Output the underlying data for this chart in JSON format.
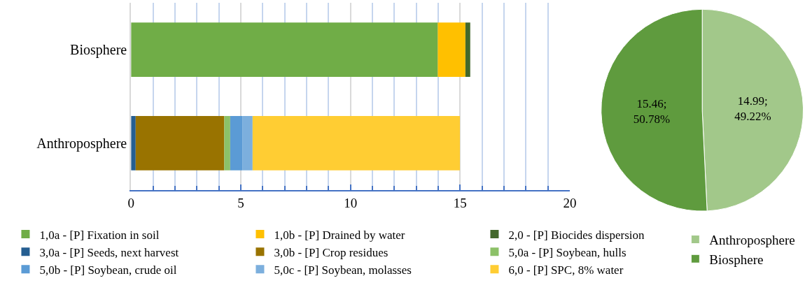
{
  "chart_data": [
    {
      "type": "bar",
      "orientation": "horizontal",
      "stacked": true,
      "categories": [
        "Biosphere",
        "Anthroposphere"
      ],
      "series": [
        {
          "name": "1,0a - [P] Fixation in soil",
          "color": "#70ad47",
          "values": [
            13.98,
            0
          ]
        },
        {
          "name": "1,0b - [P] Drained by water",
          "color": "#ffc000",
          "values": [
            1.26,
            0
          ]
        },
        {
          "name": "2,0 - [P] Biocides dispersion",
          "color": "#43682b",
          "values": [
            0.22,
            0
          ]
        },
        {
          "name": "3,0a - [P] Seeds, next harvest",
          "color": "#255e91",
          "values": [
            0,
            0.21
          ]
        },
        {
          "name": "3,0b - [P] Crop residues",
          "color": "#997300",
          "values": [
            0,
            4.04
          ]
        },
        {
          "name": "5,0a - [P] Soybean, hulls",
          "color": "#8cc168",
          "values": [
            0,
            0.27
          ]
        },
        {
          "name": "5,0b - [P] Soybean, crude oil",
          "color": "#5b9bd5",
          "values": [
            0,
            0.55
          ]
        },
        {
          "name": "5,0c - [P] Soybean, molasses",
          "color": "#7cafdd",
          "values": [
            0,
            0.47
          ]
        },
        {
          "name": "6,0 - [P] SPC, 8% water",
          "color": "#ffcd33",
          "values": [
            0,
            9.45
          ]
        }
      ],
      "xlim": [
        0,
        20
      ],
      "xticks": [
        0,
        {
          "value": 1,
          "label": null
        },
        {
          "value": 2,
          "label": null
        },
        {
          "value": 3,
          "label": null
        },
        {
          "value": 4,
          "label": null
        },
        5,
        {
          "value": 6,
          "label": null
        },
        {
          "value": 7,
          "label": null
        },
        {
          "value": 8,
          "label": null
        },
        {
          "value": 9,
          "label": null
        },
        10,
        {
          "value": 11,
          "label": null
        },
        {
          "value": 12,
          "label": null
        },
        {
          "value": 13,
          "label": null
        },
        {
          "value": 14,
          "label": null
        },
        15,
        {
          "value": 16,
          "label": null
        },
        {
          "value": 17,
          "label": null
        },
        {
          "value": 18,
          "label": null
        },
        {
          "value": 19,
          "label": null
        },
        20
      ],
      "grid": "x",
      "legend": "bottom"
    },
    {
      "type": "pie",
      "categories": [
        "Anthroposphere",
        "Biosphere"
      ],
      "values": [
        14.99,
        15.46
      ],
      "colors": [
        "#a2c88a",
        "#5f9b3e"
      ],
      "value_labels": [
        "14.99;\n49.22%",
        "15.46;\n50.78%"
      ],
      "legend": "bottom right"
    }
  ]
}
